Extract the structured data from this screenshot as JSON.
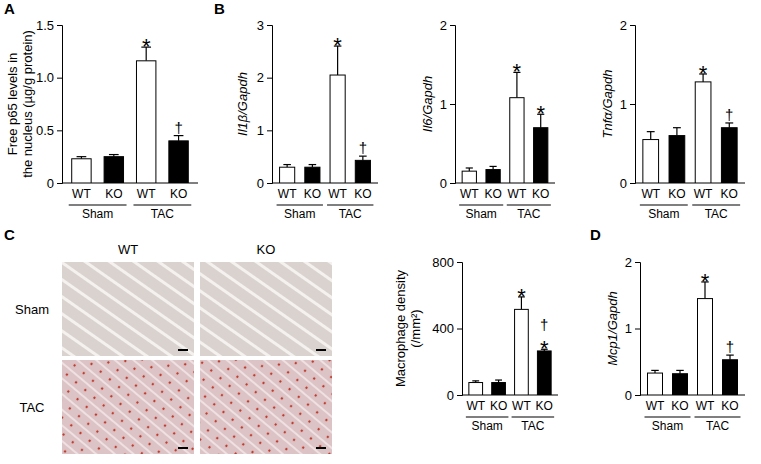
{
  "panel_labels": [
    "A",
    "B",
    "C",
    "D"
  ],
  "micrograph": {
    "columns": [
      "WT",
      "KO"
    ],
    "rows": [
      "Sham",
      "TAC"
    ]
  },
  "chart_data": [
    {
      "type": "bar",
      "y_label": [
        "Free p65 levels in",
        "the nucleus (µg/g protein)"
      ],
      "italic": false,
      "categories": [
        "WT",
        "KO",
        "WT",
        "KO"
      ],
      "group_labels": [
        "Sham",
        "TAC"
      ],
      "values": [
        0.23,
        0.25,
        1.16,
        0.4
      ],
      "errors": [
        0.02,
        0.02,
        0.13,
        0.05
      ],
      "colors": [
        "#ffffff",
        "#000000",
        "#ffffff",
        "#000000"
      ],
      "annotations": [
        null,
        null,
        [
          "*"
        ],
        [
          "†"
        ]
      ],
      "ylim": [
        0,
        1.5
      ],
      "yticks": [
        0,
        0.5,
        {
          "value": 1,
          "label": "1.0"
        },
        1.5
      ]
    },
    {
      "type": "bar",
      "y_label": [
        "Il1β/Gapdh"
      ],
      "italic": true,
      "categories": [
        "WT",
        "KO",
        "WT",
        "KO"
      ],
      "group_labels": [
        "Sham",
        "TAC"
      ],
      "values": [
        0.3,
        0.3,
        2.05,
        0.43
      ],
      "errors": [
        0.05,
        0.05,
        0.55,
        0.08
      ],
      "colors": [
        "#ffffff",
        "#000000",
        "#ffffff",
        "#000000"
      ],
      "annotations": [
        null,
        null,
        [
          "*"
        ],
        [
          "†"
        ]
      ],
      "ylim": [
        0,
        3
      ],
      "yticks": [
        0,
        1,
        2,
        3
      ]
    },
    {
      "type": "bar",
      "y_label": [
        "Il6/Gapdh"
      ],
      "italic": true,
      "categories": [
        "WT",
        "KO",
        "WT",
        "KO"
      ],
      "group_labels": [
        "Sham",
        "TAC"
      ],
      "values": [
        0.15,
        0.17,
        1.08,
        0.7
      ],
      "errors": [
        0.04,
        0.04,
        0.32,
        0.17
      ],
      "colors": [
        "#ffffff",
        "#000000",
        "#ffffff",
        "#000000"
      ],
      "annotations": [
        null,
        null,
        [
          "*"
        ],
        [
          "*"
        ]
      ],
      "ylim": [
        0,
        2
      ],
      "yticks": [
        0,
        1,
        2
      ]
    },
    {
      "type": "bar",
      "y_label": [
        "Tnfα/Gapdh"
      ],
      "italic": true,
      "categories": [
        "WT",
        "KO",
        "WT",
        "KO"
      ],
      "group_labels": [
        "Sham",
        "TAC"
      ],
      "values": [
        0.55,
        0.6,
        1.28,
        0.7
      ],
      "errors": [
        0.1,
        0.1,
        0.1,
        0.06
      ],
      "colors": [
        "#ffffff",
        "#000000",
        "#ffffff",
        "#000000"
      ],
      "annotations": [
        null,
        null,
        [
          "*"
        ],
        [
          "†"
        ]
      ],
      "ylim": [
        0,
        2
      ],
      "yticks": [
        0,
        1,
        2
      ]
    },
    {
      "type": "bar",
      "y_label": [
        "Macrophage density",
        "(/mm²)"
      ],
      "italic": false,
      "categories": [
        "WT",
        "KO",
        "WT",
        "KO"
      ],
      "group_labels": [
        "Sham",
        "TAC"
      ],
      "values": [
        75,
        75,
        515,
        265
      ],
      "errors": [
        10,
        15,
        75,
        10
      ],
      "colors": [
        "#ffffff",
        "#000000",
        "#ffffff",
        "#000000"
      ],
      "annotations": [
        null,
        null,
        [
          "*"
        ],
        [
          "†",
          "*"
        ]
      ],
      "ylim": [
        0,
        800
      ],
      "yticks": [
        0,
        400,
        800
      ]
    },
    {
      "type": "bar",
      "y_label": [
        "Mcp1/Gapdh"
      ],
      "italic": true,
      "categories": [
        "WT",
        "KO",
        "WT",
        "KO"
      ],
      "group_labels": [
        "Sham",
        "TAC"
      ],
      "values": [
        0.33,
        0.32,
        1.45,
        0.53
      ],
      "errors": [
        0.04,
        0.05,
        0.25,
        0.07
      ],
      "colors": [
        "#ffffff",
        "#000000",
        "#ffffff",
        "#000000"
      ],
      "annotations": [
        null,
        null,
        [
          "*"
        ],
        [
          "†"
        ]
      ],
      "ylim": [
        0,
        2
      ],
      "yticks": [
        0,
        1,
        2
      ]
    }
  ]
}
